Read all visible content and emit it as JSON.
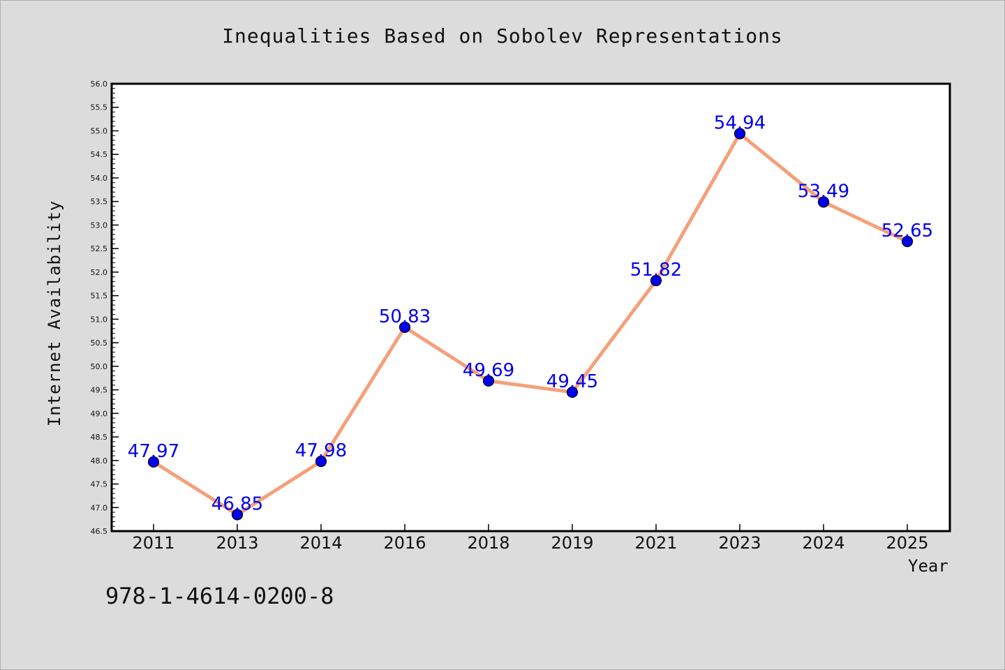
{
  "chart_data": {
    "type": "line",
    "title": "Inequalities Based on Sobolev Representations",
    "xlabel": "Year",
    "ylabel": "Internet Availability",
    "categories": [
      "2011",
      "2013",
      "2014",
      "2016",
      "2018",
      "2019",
      "2021",
      "2023",
      "2024",
      "2025"
    ],
    "series": [
      {
        "values": [
          47.97,
          46.85,
          47.98,
          50.83,
          49.69,
          49.45,
          51.82,
          54.94,
          53.49,
          52.65
        ],
        "data_labels": [
          "47.97",
          "46.85",
          "47.98",
          "50.83",
          "49.69",
          "49.45",
          "51.82",
          "54.94",
          "53.49",
          "52.65"
        ],
        "line_color": "#f4a07a",
        "marker_color": "#0000ee"
      }
    ],
    "ylim": [
      46.5,
      56.0
    ],
    "yticks": [
      "46.5",
      "47.0",
      "47.5",
      "48.0",
      "48.5",
      "49.0",
      "49.5",
      "50.0",
      "50.5",
      "51.0",
      "51.5",
      "52.0",
      "52.5",
      "53.0",
      "53.5",
      "54.0",
      "54.5",
      "55.0",
      "55.5",
      "56.0"
    ],
    "grid": false,
    "legend": "none",
    "label_color": "#0000ee",
    "background": "#dcdcdc",
    "plot_background": "#ffffff"
  },
  "footer": {
    "isbn": "978-1-4614-0200-8"
  }
}
